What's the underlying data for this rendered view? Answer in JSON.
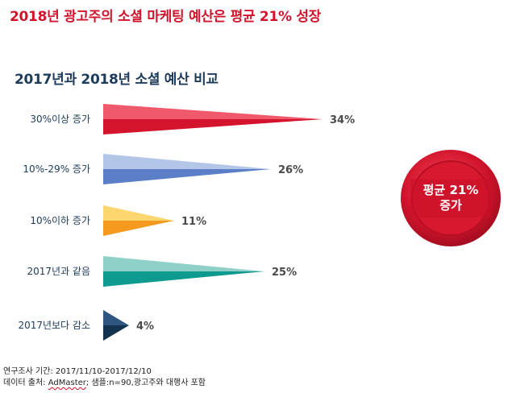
{
  "headline": "2018년 광고주의 소셜 마케팅 예산은 평균 21% 성장",
  "chart_data": {
    "type": "bar",
    "title": "2017년과 2018년 소셜 예산 비교",
    "orientation": "horizontal",
    "categories": [
      "30%이상 증가",
      "10%-29% 증가",
      "10%이하 증가",
      "2017년과 같음",
      "2017년보다 감소"
    ],
    "values": [
      34,
      26,
      11,
      25,
      4
    ],
    "value_labels": [
      "34%",
      "26%",
      "11%",
      "25%",
      "4%"
    ],
    "unit": "%",
    "xlim": [
      0,
      34
    ],
    "colors": [
      {
        "top": "#f0596b",
        "bottom": "#d4142c"
      },
      {
        "top": "#b3c6e8",
        "bottom": "#5b7fc6"
      },
      {
        "top": "#fcd66f",
        "bottom": "#f59a1f"
      },
      {
        "top": "#8fd1c8",
        "bottom": "#0f9a8f"
      },
      {
        "top": "#2e5680",
        "bottom": "#13324f"
      }
    ]
  },
  "badge": {
    "line1": "평균 21%",
    "line2": "증가",
    "color": "#d0142c"
  },
  "footnotes": {
    "period": "연구조사 기간: 2017/11/10-2017/12/10",
    "source_prefix": "데이터 출처: ",
    "source_name": "AdMaster",
    "source_suffix": "; 샘플:n=90,광고주와 대행사 포함"
  }
}
